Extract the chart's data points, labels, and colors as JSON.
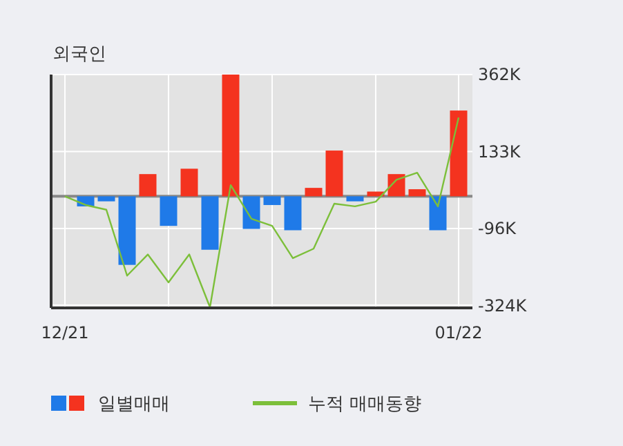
{
  "chart_data": {
    "type": "bar",
    "title": "외국인",
    "categories": [
      "12/21",
      null,
      null,
      null,
      null,
      null,
      null,
      null,
      null,
      null,
      null,
      null,
      null,
      null,
      null,
      null,
      null,
      null,
      null,
      "01/22"
    ],
    "series": [
      {
        "name": "일별매매",
        "colors": [
          "#f4331f",
          "#1f7ae8",
          "#1f7ae8",
          "#1f7ae8",
          "#f4331f",
          "#1f7ae8",
          "#f4331f",
          "#1f7ae8",
          "#f4331f",
          "#1f7ae8",
          "#1f7ae8",
          "#1f7ae8",
          "#f4331f",
          "#f4331f",
          "#1f7ae8",
          "#f4331f",
          "#f4331f",
          "#f4331f",
          "#1f7ae8",
          "#f4331f"
        ],
        "values": [
          0,
          -30,
          -15,
          -204,
          66,
          -88,
          82,
          -159,
          362,
          -97,
          -26,
          -101,
          25,
          136,
          -15,
          14,
          66,
          21,
          -101,
          255
        ]
      },
      {
        "type": "line",
        "name": "누적 매매동향",
        "color": "#7cbf3a",
        "values": [
          0,
          -26,
          -40,
          -236,
          -173,
          -256,
          -173,
          -330,
          33,
          -67,
          -88,
          -184,
          -156,
          -22,
          -30,
          -16,
          49,
          70,
          -30,
          234
        ]
      }
    ],
    "ylim": [
      -332,
      362
    ],
    "yticks": [
      {
        "value": 362,
        "label": "362K"
      },
      {
        "value": 133,
        "label": "133K"
      },
      {
        "value": -96,
        "label": "-96K"
      },
      {
        "value": -324,
        "label": "-324K"
      }
    ],
    "grid": true,
    "legend": "bottom left"
  }
}
